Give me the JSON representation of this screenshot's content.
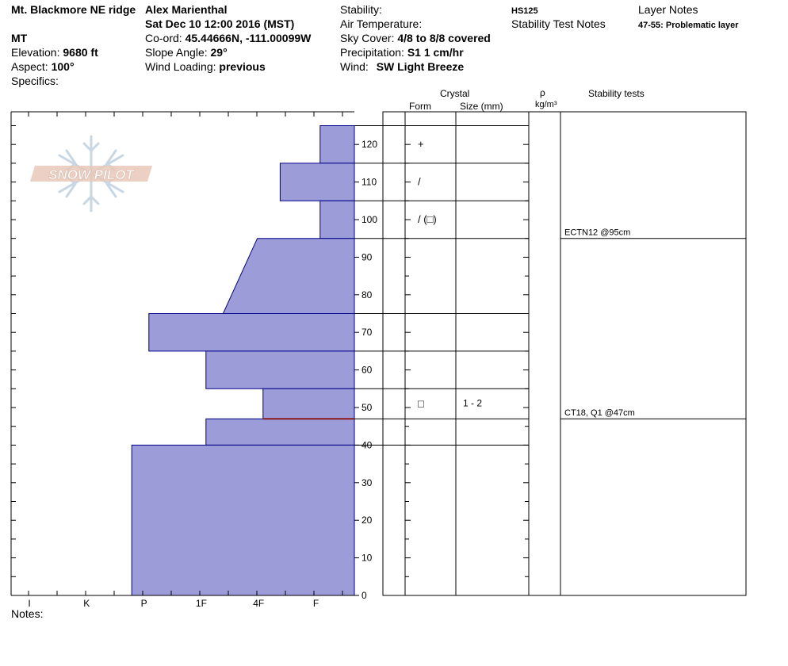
{
  "header": {
    "location": "Mt. Blackmore NE ridge",
    "state": "MT",
    "elevation_label": "Elevation:",
    "elevation_value": "9680 ft",
    "aspect_label": "Aspect:",
    "aspect_value": "100°",
    "specifics_label": "Specifics:",
    "observer": "Alex Marienthal",
    "datetime": "Sat Dec 10 12:00 2016 (MST)",
    "coord_label": "Co-ord:",
    "coord_value": "45.44666N, -111.00099W",
    "slope_label": "Slope Angle:",
    "slope_value": "29°",
    "wind_loading_label": "Wind Loading:",
    "wind_loading_value": "previous",
    "stability_label": "Stability:",
    "air_temp_label": "Air Temperature:",
    "sky_label": "Sky Cover:",
    "sky_value": "4/8 to 8/8 covered",
    "precip_label": "Precipitation:",
    "precip_value": "S1 1 cm/hr",
    "wind_label": "Wind:",
    "wind_value": "SW Light Breeze",
    "hs": "HS125",
    "stability_notes_label": "Stability Test Notes",
    "layer_notes_label": "Layer Notes",
    "layer_note": "47-55: Problematic layer"
  },
  "columns": {
    "crystal": "Crystal",
    "form": "Form",
    "size": "Size (mm)",
    "rho": "ρ",
    "density_unit": "kg/m³",
    "stability_tests": "Stability tests"
  },
  "notes_label": "Notes:",
  "logo_text": "SNOW PILOT",
  "chart_data": {
    "type": "bar",
    "orientation": "horizontal",
    "y_axis": {
      "range": [
        0,
        125
      ],
      "ticks": [
        0,
        10,
        20,
        30,
        40,
        50,
        60,
        70,
        80,
        90,
        100,
        110,
        120
      ]
    },
    "x_axis": {
      "categories": [
        "I",
        "K",
        "P",
        "1F",
        "4F",
        "F"
      ]
    },
    "layers": [
      {
        "bottom": 115,
        "top": 125,
        "hardness_bottom": 0.6,
        "hardness_top": 0.6
      },
      {
        "bottom": 105,
        "top": 115,
        "hardness_bottom": 1.3,
        "hardness_top": 1.3
      },
      {
        "bottom": 95,
        "top": 105,
        "hardness_bottom": 0.6,
        "hardness_top": 0.6
      },
      {
        "bottom": 75,
        "top": 95,
        "hardness_bottom": 2.3,
        "hardness_top": 1.7
      },
      {
        "bottom": 65,
        "top": 75,
        "hardness_bottom": 3.6,
        "hardness_top": 3.6
      },
      {
        "bottom": 55,
        "top": 65,
        "hardness_bottom": 2.6,
        "hardness_top": 2.6
      },
      {
        "bottom": 47,
        "top": 55,
        "hardness_bottom": 1.6,
        "hardness_top": 1.6
      },
      {
        "bottom": 40,
        "top": 47,
        "hardness_bottom": 2.6,
        "hardness_top": 2.6
      },
      {
        "bottom": 0,
        "top": 40,
        "hardness_bottom": 3.9,
        "hardness_top": 3.9
      }
    ],
    "problematic_layer_top": 47,
    "problematic_color": "#8B1A1A",
    "fill_color": "#9C9CD8",
    "outline_color": "#00008B",
    "crystals": [
      {
        "height": 120,
        "form": "+",
        "size": ""
      },
      {
        "height": 110,
        "form": "/",
        "size": ""
      },
      {
        "height": 100,
        "form": "/ (□)",
        "size": ""
      },
      {
        "height": 51,
        "form": "□",
        "size": "1 - 2"
      }
    ],
    "layer_boundaries_table": [
      125,
      115,
      105,
      95,
      75,
      65,
      55,
      47,
      40,
      0
    ],
    "stability_tests": [
      {
        "height": 95,
        "label": "ECTN12 @95cm"
      },
      {
        "height": 47,
        "label": "CT18, Q1 @47cm"
      }
    ]
  }
}
